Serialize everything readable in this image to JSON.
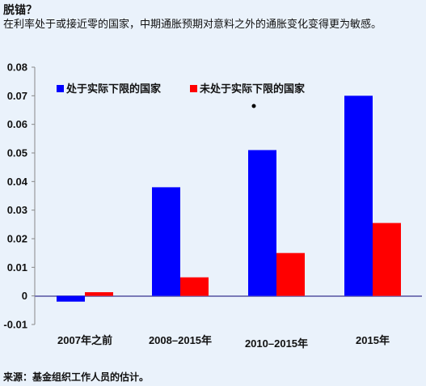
{
  "header": {
    "title": "脱锚？",
    "subtitle": "在利率处于或接近零的国家，中期通胀预期对意料之外的通胀变化变得更为敏感。"
  },
  "footer": {
    "source": "来源：基金组织工作人员的估计。"
  },
  "chart_data": {
    "type": "bar",
    "categories": [
      "2007年之前",
      "2008–2015年",
      "2010–2015年",
      "2015年"
    ],
    "series": [
      {
        "name": "处于实际下限的国家",
        "color": "#0000ff",
        "values": [
          -0.002,
          0.038,
          0.051,
          0.07
        ]
      },
      {
        "name": "未处于实际下限的国家",
        "color": "#ff0000",
        "values": [
          0.0013,
          0.0065,
          0.015,
          0.0255
        ]
      }
    ],
    "ylim": [
      -0.01,
      0.08
    ],
    "yticks": [
      "0.08",
      "0.07",
      "0.06",
      "0.05",
      "0.04",
      "0.03",
      "0.02",
      "0.01",
      "0",
      "-0.01"
    ],
    "ytick_values": [
      0.08,
      0.07,
      0.06,
      0.05,
      0.04,
      0.03,
      0.02,
      0.01,
      0,
      -0.01
    ],
    "legend_position": "top-left",
    "grid": false
  }
}
